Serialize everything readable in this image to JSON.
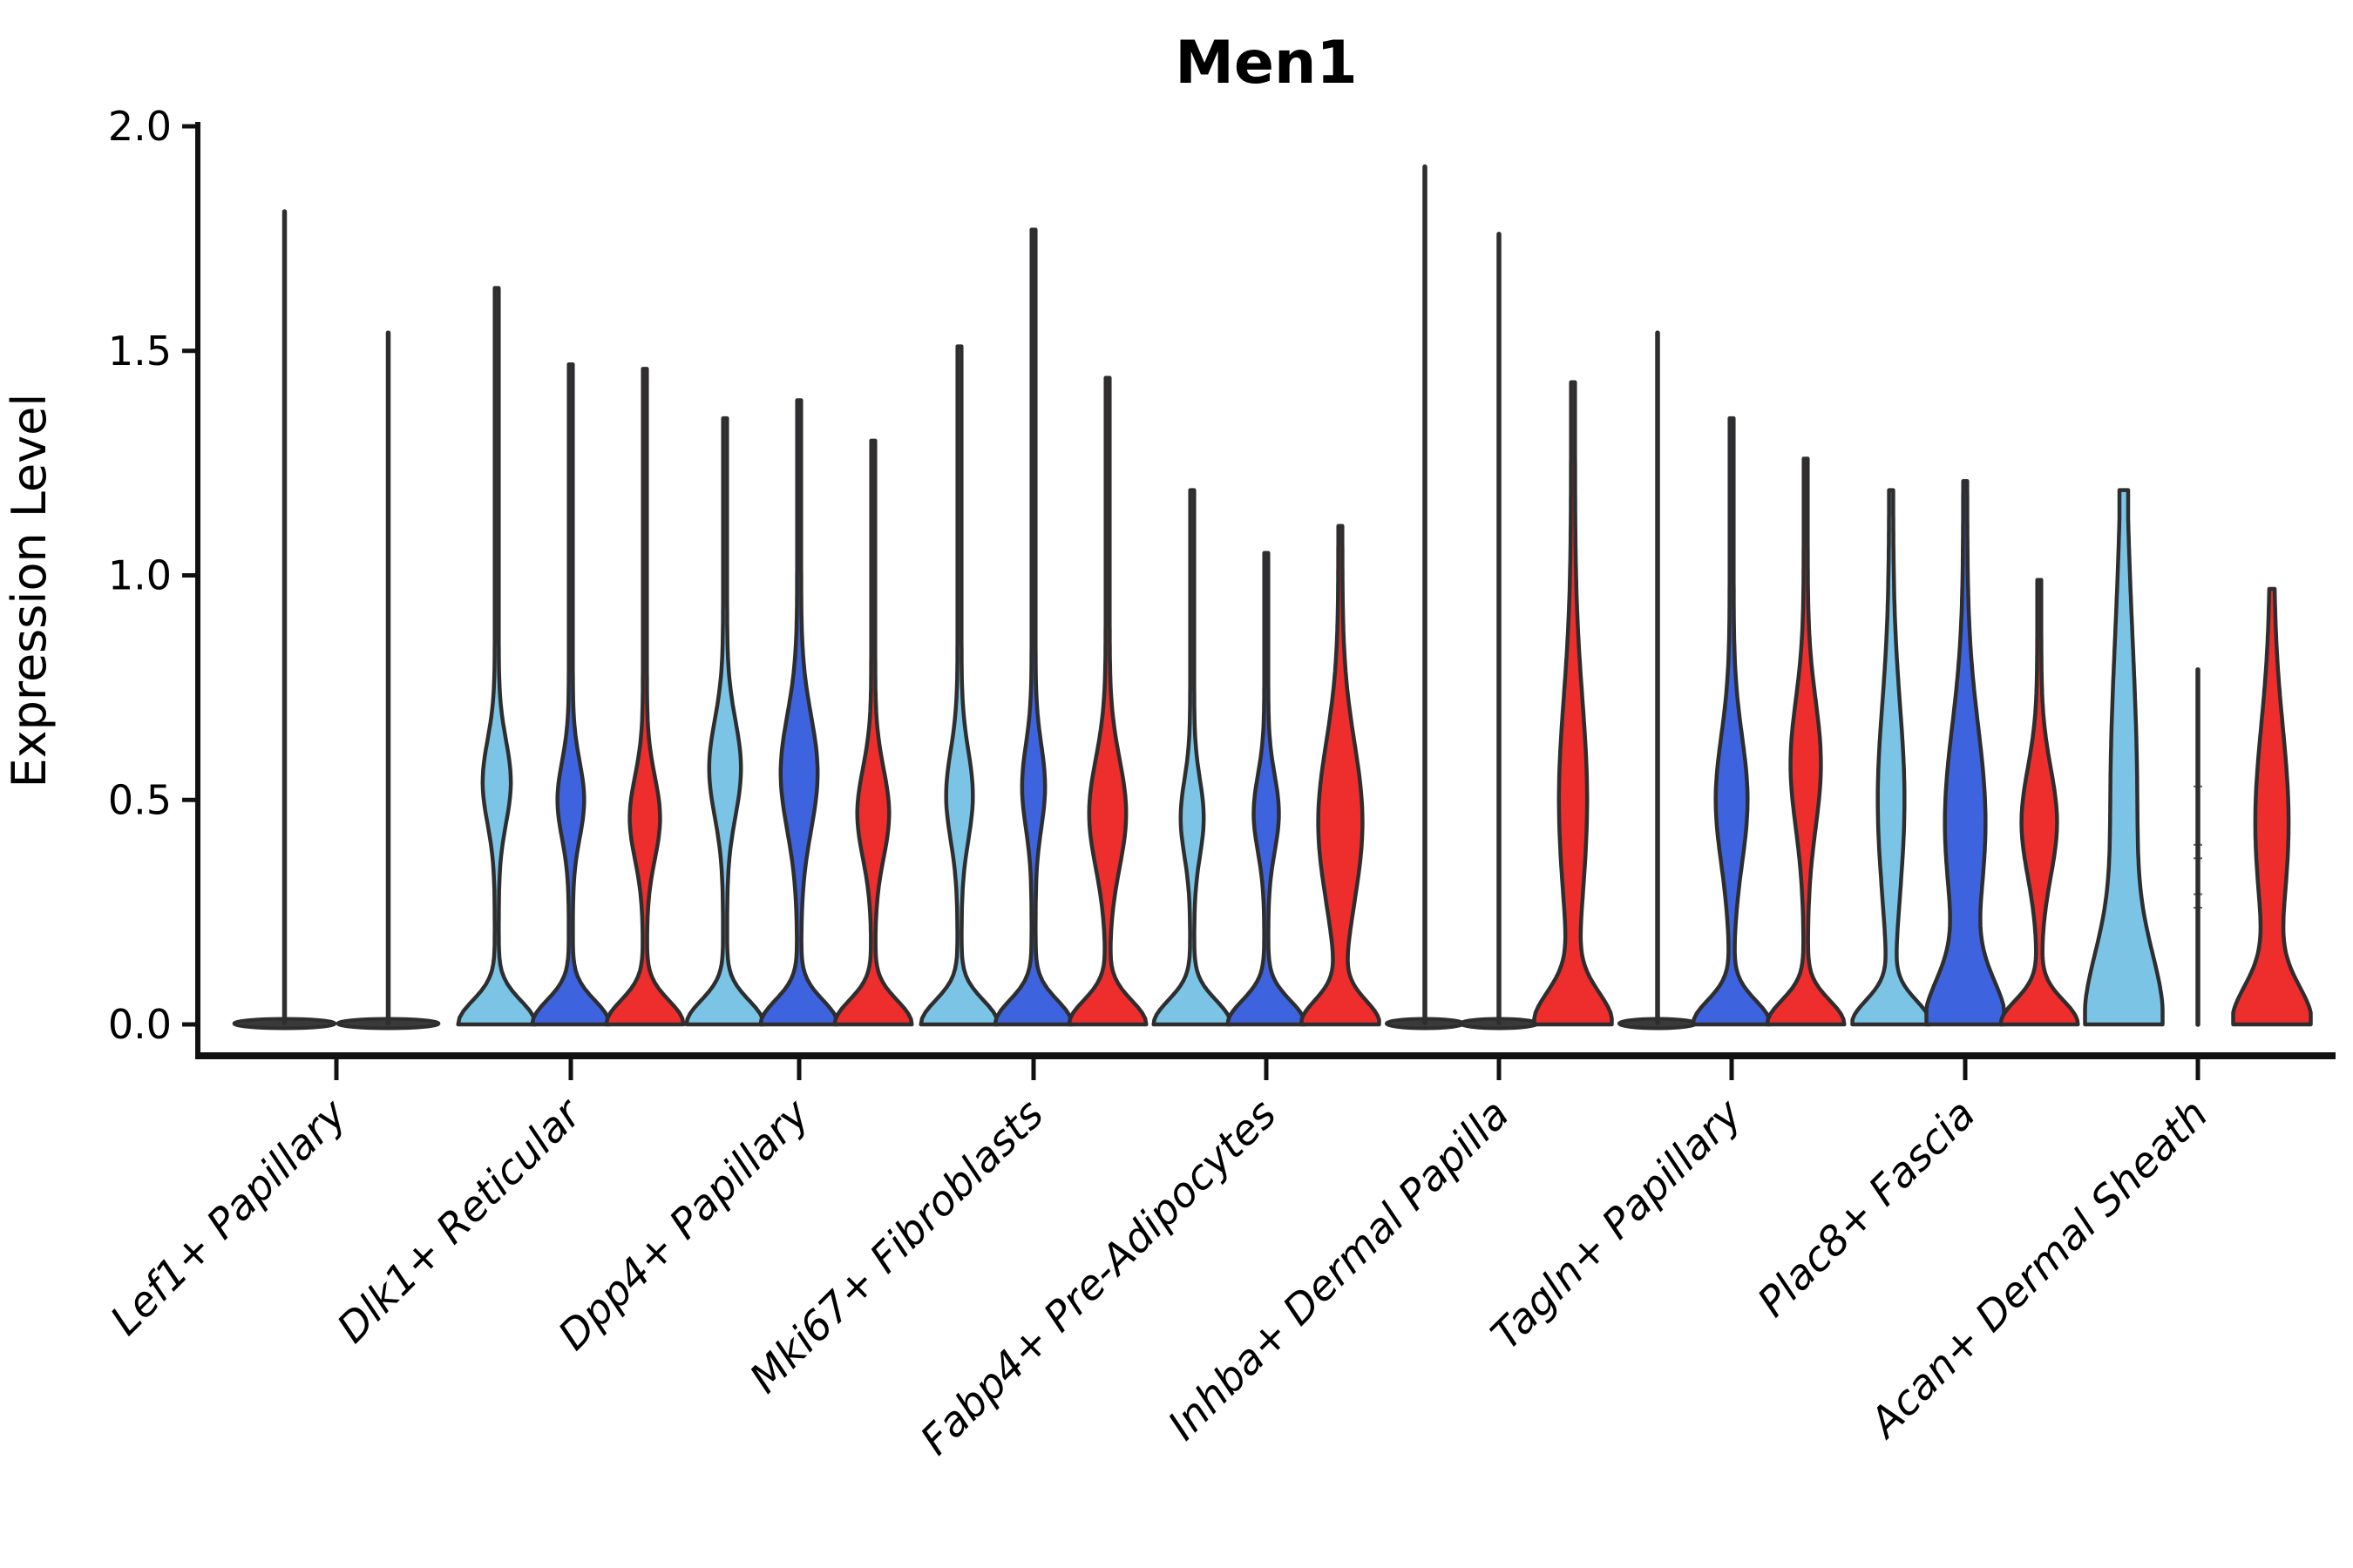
{
  "title": "Men1",
  "ylabel": "Expression Level",
  "chart_data": {
    "type": "violin",
    "title": "Men1",
    "xlabel": "",
    "ylabel": "Expression Level",
    "ylim": [
      0.0,
      2.0
    ],
    "yticks": [
      0.0,
      0.5,
      1.0,
      1.5,
      2.0
    ],
    "ytick_labels": [
      "0.0",
      "0.5",
      "1.0",
      "1.5",
      "2.0"
    ],
    "grid": false,
    "legend": "none",
    "palette": {
      "sky": "#7CC4E6",
      "blue": "#3E63DE",
      "red": "#EE2D2D",
      "outline": "#2E2E2E",
      "axis": "#111111",
      "flat_fill": "#3A3A3A"
    },
    "categories": [
      "Lef1+ Papillary",
      "Dlk1+ Reticular",
      "Dpp4+ Papillary",
      "Mki67+ Fibroblasts",
      "Fabp4+ Pre-Adipocytes",
      "Inhba+ Dermal Papilla",
      "Tagln+ Papillary",
      "Plac8+ Fascia",
      "Acan+ Dermal Sheath"
    ],
    "groups": [
      {
        "category": "Lef1+ Papillary",
        "violins": [
          {
            "series": "sky",
            "style": "flat",
            "max": 1.81,
            "base": {
              "f": 1.38
            }
          },
          {
            "series": "blue",
            "style": "flat",
            "max": 1.54,
            "base": {
              "f": 1.38
            }
          }
        ]
      },
      {
        "category": "Dlk1+ Reticular",
        "violins": [
          {
            "series": "sky",
            "style": "violin",
            "max": 1.64,
            "base": {
              "f": 1.0,
              "sigma": 0.075
            },
            "bulge": {
              "center": 0.54,
              "sigma": 0.13,
              "f": 0.33
            }
          },
          {
            "series": "blue",
            "style": "violin",
            "max": 1.47,
            "base": {
              "f": 1.0,
              "sigma": 0.075
            },
            "bulge": {
              "center": 0.5,
              "sigma": 0.12,
              "f": 0.31
            }
          },
          {
            "series": "red",
            "style": "violin",
            "max": 1.46,
            "base": {
              "f": 1.0,
              "sigma": 0.075
            },
            "bulge": {
              "center": 0.46,
              "sigma": 0.13,
              "f": 0.36
            }
          }
        ]
      },
      {
        "category": "Dpp4+ Papillary",
        "violins": [
          {
            "series": "sky",
            "style": "violin",
            "max": 1.35,
            "base": {
              "f": 1.0,
              "sigma": 0.075
            },
            "bulge": {
              "center": 0.57,
              "sigma": 0.15,
              "f": 0.38
            }
          },
          {
            "series": "blue",
            "style": "violin",
            "max": 1.39,
            "base": {
              "f": 1.0,
              "sigma": 0.075
            },
            "bulge": {
              "center": 0.56,
              "sigma": 0.18,
              "f": 0.45
            }
          },
          {
            "series": "red",
            "style": "violin",
            "max": 1.3,
            "base": {
              "f": 1.0,
              "sigma": 0.075
            },
            "bulge": {
              "center": 0.47,
              "sigma": 0.14,
              "f": 0.38
            }
          }
        ]
      },
      {
        "category": "Mki67+ Fibroblasts",
        "violins": [
          {
            "series": "sky",
            "style": "violin",
            "max": 1.51,
            "base": {
              "f": 1.0,
              "sigma": 0.075
            },
            "bulge": {
              "center": 0.51,
              "sigma": 0.14,
              "f": 0.31
            }
          },
          {
            "series": "blue",
            "style": "violin",
            "max": 1.77,
            "base": {
              "f": 1.0,
              "sigma": 0.075
            },
            "bulge": {
              "center": 0.53,
              "sigma": 0.13,
              "f": 0.26
            }
          },
          {
            "series": "red",
            "style": "violin",
            "max": 1.44,
            "base": {
              "f": 1.0,
              "sigma": 0.075
            },
            "bulge": {
              "center": 0.47,
              "sigma": 0.17,
              "f": 0.45
            }
          }
        ]
      },
      {
        "category": "Fabp4+ Pre-Adipocytes",
        "violins": [
          {
            "series": "sky",
            "style": "violin",
            "max": 1.19,
            "base": {
              "f": 1.0,
              "sigma": 0.075
            },
            "bulge": {
              "center": 0.46,
              "sigma": 0.12,
              "f": 0.26
            }
          },
          {
            "series": "blue",
            "style": "violin",
            "max": 1.05,
            "base": {
              "f": 1.0,
              "sigma": 0.075
            },
            "bulge": {
              "center": 0.47,
              "sigma": 0.12,
              "f": 0.29
            }
          },
          {
            "series": "red",
            "style": "violin",
            "max": 1.11,
            "base": {
              "f": 1.0,
              "sigma": 0.075
            },
            "bulge": {
              "center": 0.45,
              "sigma": 0.25,
              "f": 0.55
            }
          }
        ]
      },
      {
        "category": "Inhba+ Dermal Papilla",
        "violins": [
          {
            "series": "sky",
            "style": "flat",
            "max": 1.91,
            "base": {
              "f": 1.05
            }
          },
          {
            "series": "blue",
            "style": "flat",
            "max": 1.76,
            "base": {
              "f": 1.05
            }
          },
          {
            "series": "red",
            "style": "violin",
            "max": 1.43,
            "base": {
              "f": 1.0,
              "sigma": 0.1
            },
            "bulge": {
              "center": 0.5,
              "sigma": 0.32,
              "f": 0.33
            }
          }
        ]
      },
      {
        "category": "Tagln+ Papillary",
        "violins": [
          {
            "series": "sky",
            "style": "flat",
            "max": 1.54,
            "base": {
              "f": 1.05
            }
          },
          {
            "series": "blue",
            "style": "violin",
            "max": 1.35,
            "base": {
              "f": 1.0,
              "sigma": 0.075
            },
            "bulge": {
              "center": 0.5,
              "sigma": 0.2,
              "f": 0.38
            }
          },
          {
            "series": "red",
            "style": "violin",
            "max": 1.26,
            "base": {
              "f": 1.0,
              "sigma": 0.075
            },
            "bulge": {
              "center": 0.58,
              "sigma": 0.2,
              "f": 0.36
            }
          }
        ]
      },
      {
        "category": "Plac8+ Fascia",
        "violins": [
          {
            "series": "sky",
            "style": "violin",
            "max": 1.19,
            "base": {
              "f": 1.0,
              "sigma": 0.075
            },
            "bulge": {
              "center": 0.5,
              "sigma": 0.3,
              "f": 0.31
            }
          },
          {
            "series": "blue",
            "style": "violin",
            "max": 1.21,
            "base": {
              "f": 1.0,
              "sigma": 0.14
            },
            "bulge": {
              "center": 0.45,
              "sigma": 0.3,
              "f": 0.5
            }
          },
          {
            "series": "red",
            "style": "violin",
            "max": 0.99,
            "base": {
              "f": 1.0,
              "sigma": 0.075
            },
            "bulge": {
              "center": 0.45,
              "sigma": 0.17,
              "f": 0.43
            }
          }
        ]
      },
      {
        "category": "Acan+ Dermal Sheath",
        "violins": [
          {
            "series": "sky",
            "style": "column",
            "max": 1.19,
            "base": {
              "f": 0.9,
              "sigma": 0.22
            },
            "bulge": {
              "center": 0.5,
              "sigma": 0.5,
              "f": 0.31
            },
            "cap": 0.12
          },
          {
            "series": "blue",
            "style": "line",
            "max": 0.79,
            "marks": [
              0.26,
              0.29,
              0.37,
              0.4,
              0.53
            ]
          },
          {
            "series": "red",
            "style": "violin",
            "max": 0.97,
            "base": {
              "f": 1.0,
              "sigma": 0.12
            },
            "bulge": {
              "center": 0.45,
              "sigma": 0.3,
              "f": 0.4
            }
          }
        ]
      }
    ]
  }
}
